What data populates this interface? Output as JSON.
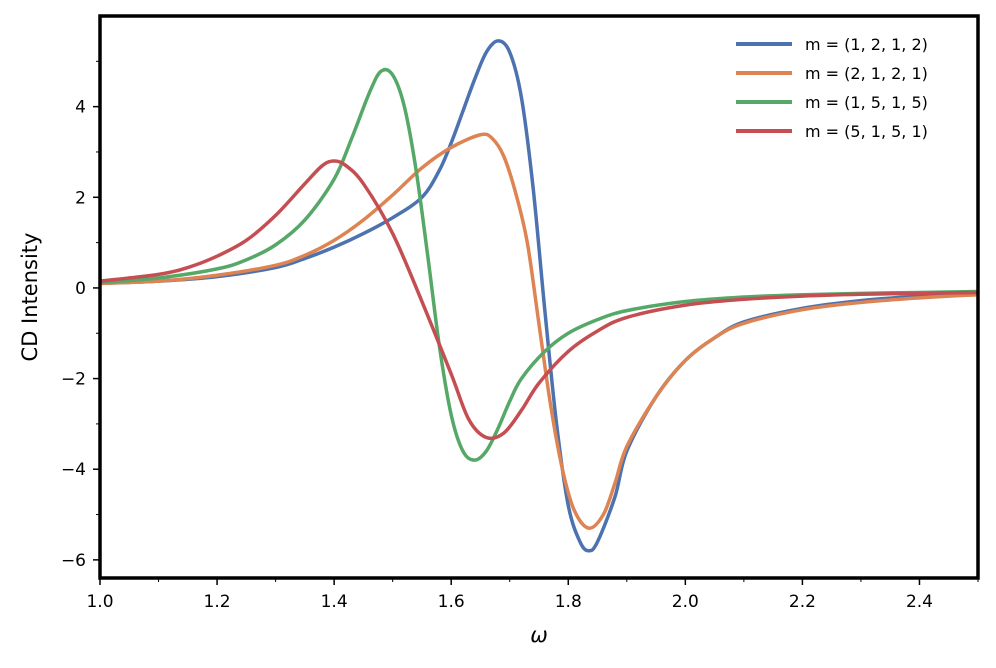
{
  "chart_data": {
    "type": "line",
    "title": "",
    "xlabel": "ω",
    "ylabel": "CD Intensity",
    "xlim": [
      1.0,
      2.5
    ],
    "ylim": [
      -6.4,
      6.0
    ],
    "xticks": [
      1.0,
      1.2,
      1.4,
      1.6,
      1.8,
      2.0,
      2.2,
      2.4
    ],
    "xtick_labels": [
      "1.0",
      "1.2",
      "1.4",
      "1.6",
      "1.8",
      "2.0",
      "2.2",
      "2.4"
    ],
    "yticks": [
      -6,
      -4,
      -2,
      0,
      2,
      4
    ],
    "ytick_labels": [
      "−6",
      "−4",
      "−2",
      "0",
      "2",
      "4"
    ],
    "grid": false,
    "legend_position": "top-right",
    "series": [
      {
        "name": "m = (1, 2, 1, 2)",
        "color": "#4c72b0",
        "points": [
          [
            1.0,
            0.1
          ],
          [
            1.1,
            0.15
          ],
          [
            1.2,
            0.25
          ],
          [
            1.3,
            0.45
          ],
          [
            1.35,
            0.65
          ],
          [
            1.4,
            0.9
          ],
          [
            1.45,
            1.2
          ],
          [
            1.5,
            1.55
          ],
          [
            1.55,
            2.0
          ],
          [
            1.58,
            2.6
          ],
          [
            1.6,
            3.2
          ],
          [
            1.62,
            3.9
          ],
          [
            1.64,
            4.6
          ],
          [
            1.66,
            5.2
          ],
          [
            1.68,
            5.45
          ],
          [
            1.7,
            5.2
          ],
          [
            1.72,
            4.2
          ],
          [
            1.74,
            2.2
          ],
          [
            1.76,
            -0.5
          ],
          [
            1.78,
            -3.0
          ],
          [
            1.8,
            -4.8
          ],
          [
            1.82,
            -5.6
          ],
          [
            1.835,
            -5.8
          ],
          [
            1.85,
            -5.6
          ],
          [
            1.88,
            -4.6
          ],
          [
            1.9,
            -3.6
          ],
          [
            1.95,
            -2.4
          ],
          [
            2.0,
            -1.6
          ],
          [
            2.05,
            -1.1
          ],
          [
            2.1,
            -0.75
          ],
          [
            2.2,
            -0.45
          ],
          [
            2.3,
            -0.28
          ],
          [
            2.4,
            -0.18
          ],
          [
            2.5,
            -0.1
          ]
        ]
      },
      {
        "name": "m = (2, 1, 2, 1)",
        "color": "#dd8452",
        "points": [
          [
            1.0,
            0.1
          ],
          [
            1.1,
            0.15
          ],
          [
            1.2,
            0.28
          ],
          [
            1.3,
            0.5
          ],
          [
            1.35,
            0.72
          ],
          [
            1.4,
            1.05
          ],
          [
            1.45,
            1.5
          ],
          [
            1.5,
            2.05
          ],
          [
            1.55,
            2.65
          ],
          [
            1.6,
            3.1
          ],
          [
            1.65,
            3.38
          ],
          [
            1.67,
            3.3
          ],
          [
            1.69,
            2.9
          ],
          [
            1.71,
            2.1
          ],
          [
            1.73,
            1.0
          ],
          [
            1.75,
            -0.8
          ],
          [
            1.77,
            -2.6
          ],
          [
            1.79,
            -4.0
          ],
          [
            1.81,
            -4.9
          ],
          [
            1.835,
            -5.3
          ],
          [
            1.86,
            -5.0
          ],
          [
            1.88,
            -4.3
          ],
          [
            1.9,
            -3.5
          ],
          [
            1.95,
            -2.4
          ],
          [
            2.0,
            -1.6
          ],
          [
            2.05,
            -1.1
          ],
          [
            2.1,
            -0.78
          ],
          [
            2.2,
            -0.48
          ],
          [
            2.3,
            -0.32
          ],
          [
            2.4,
            -0.22
          ],
          [
            2.5,
            -0.15
          ]
        ]
      },
      {
        "name": "m = (1, 5, 1, 5)",
        "color": "#55a868",
        "points": [
          [
            1.0,
            0.12
          ],
          [
            1.1,
            0.22
          ],
          [
            1.2,
            0.42
          ],
          [
            1.25,
            0.62
          ],
          [
            1.3,
            0.95
          ],
          [
            1.35,
            1.5
          ],
          [
            1.4,
            2.4
          ],
          [
            1.43,
            3.3
          ],
          [
            1.46,
            4.3
          ],
          [
            1.48,
            4.78
          ],
          [
            1.5,
            4.7
          ],
          [
            1.52,
            4.0
          ],
          [
            1.54,
            2.6
          ],
          [
            1.56,
            0.7
          ],
          [
            1.58,
            -1.3
          ],
          [
            1.6,
            -2.8
          ],
          [
            1.62,
            -3.6
          ],
          [
            1.64,
            -3.8
          ],
          [
            1.66,
            -3.6
          ],
          [
            1.68,
            -3.1
          ],
          [
            1.7,
            -2.5
          ],
          [
            1.72,
            -2.0
          ],
          [
            1.76,
            -1.4
          ],
          [
            1.8,
            -1.0
          ],
          [
            1.85,
            -0.7
          ],
          [
            1.9,
            -0.5
          ],
          [
            2.0,
            -0.3
          ],
          [
            2.1,
            -0.2
          ],
          [
            2.2,
            -0.15
          ],
          [
            2.3,
            -0.12
          ],
          [
            2.4,
            -0.1
          ],
          [
            2.5,
            -0.08
          ]
        ]
      },
      {
        "name": "m = (5, 1, 5, 1)",
        "color": "#c44e52",
        "points": [
          [
            1.0,
            0.15
          ],
          [
            1.1,
            0.3
          ],
          [
            1.15,
            0.45
          ],
          [
            1.2,
            0.7
          ],
          [
            1.25,
            1.05
          ],
          [
            1.3,
            1.6
          ],
          [
            1.35,
            2.3
          ],
          [
            1.38,
            2.7
          ],
          [
            1.4,
            2.8
          ],
          [
            1.42,
            2.7
          ],
          [
            1.45,
            2.3
          ],
          [
            1.5,
            1.2
          ],
          [
            1.55,
            -0.3
          ],
          [
            1.6,
            -1.9
          ],
          [
            1.63,
            -2.9
          ],
          [
            1.66,
            -3.3
          ],
          [
            1.69,
            -3.2
          ],
          [
            1.72,
            -2.7
          ],
          [
            1.75,
            -2.1
          ],
          [
            1.8,
            -1.4
          ],
          [
            1.85,
            -0.95
          ],
          [
            1.9,
            -0.65
          ],
          [
            2.0,
            -0.38
          ],
          [
            2.1,
            -0.25
          ],
          [
            2.2,
            -0.18
          ],
          [
            2.3,
            -0.14
          ],
          [
            2.4,
            -0.12
          ],
          [
            2.5,
            -0.1
          ]
        ]
      }
    ]
  }
}
